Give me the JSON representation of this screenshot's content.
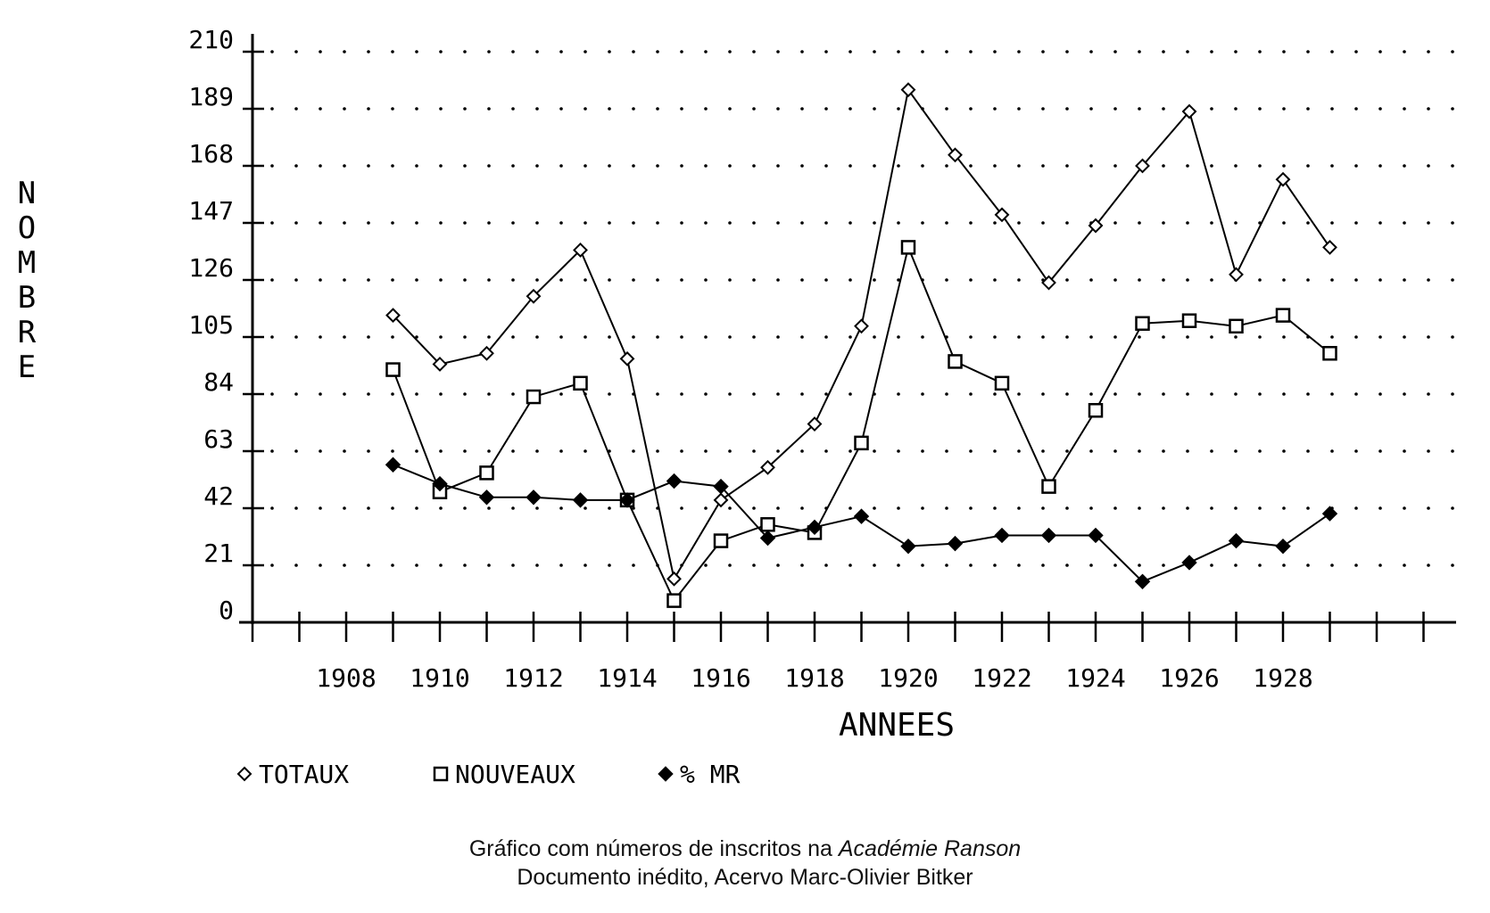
{
  "chart_data": {
    "type": "line",
    "xlabel": "ANNEES",
    "ylabel": "NOMBRE",
    "ylim": [
      0,
      210
    ],
    "xlim": [
      1906,
      1931
    ],
    "yticks": [
      0,
      21,
      42,
      63,
      84,
      105,
      126,
      147,
      168,
      189,
      210
    ],
    "xticklabels": [
      1908,
      1910,
      1912,
      1914,
      1916,
      1918,
      1920,
      1922,
      1924,
      1926,
      1928
    ],
    "grid": true,
    "legend_position": "bottom",
    "x": [
      1909,
      1910,
      1911,
      1912,
      1913,
      1914,
      1915,
      1916,
      1917,
      1918,
      1919,
      1920,
      1921,
      1922,
      1923,
      1924,
      1925,
      1926,
      1927,
      1928,
      1929
    ],
    "series": [
      {
        "name": "TOTAUX",
        "marker": "diamond-open",
        "values": [
          113,
          95,
          99,
          120,
          137,
          97,
          16,
          45,
          57,
          73,
          109,
          196,
          172,
          150,
          125,
          146,
          168,
          188,
          128,
          163,
          138
        ]
      },
      {
        "name": "NOUVEAUX",
        "marker": "square-open",
        "values": [
          93,
          48,
          55,
          83,
          88,
          45,
          8,
          30,
          36,
          33,
          66,
          138,
          96,
          88,
          50,
          78,
          110,
          111,
          109,
          113,
          99
        ]
      },
      {
        "name": "% MR",
        "marker": "diamond-filled",
        "values": [
          58,
          51,
          46,
          46,
          45,
          45,
          52,
          50,
          31,
          35,
          39,
          28,
          29,
          32,
          32,
          32,
          15,
          22,
          30,
          28,
          40
        ]
      }
    ]
  },
  "caption": {
    "line1_prefix": "Gráfico com números de inscritos na ",
    "line1_italic": "Académie Ranson",
    "line2": "Documento inédito, Acervo Marc-Olivier Bitker"
  }
}
